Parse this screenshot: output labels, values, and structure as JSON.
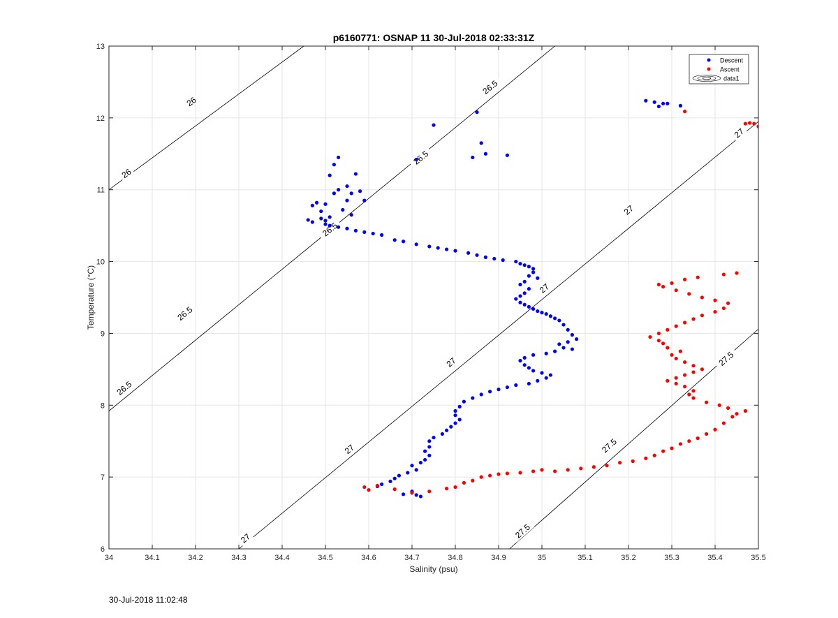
{
  "figure": {
    "footer_timestamp": "30-Jul-2018 11:02:48"
  },
  "chart_data": {
    "type": "scatter",
    "title": "p6160771: OSNAP 11 30-Jul-2018 02:33:31Z",
    "xlabel": "Salinity (psu)",
    "ylabel": "Temperature (°C)",
    "xlim": [
      34,
      35.5
    ],
    "ylim": [
      6,
      13
    ],
    "x_ticks": [
      34,
      34.1,
      34.2,
      34.3,
      34.4,
      34.5,
      34.6,
      34.7,
      34.8,
      34.9,
      35,
      35.1,
      35.2,
      35.3,
      35.4,
      35.5
    ],
    "x_tick_labels": [
      "34",
      "34.1",
      "34.2",
      "34.3",
      "34.4",
      "34.5",
      "34.6",
      "34.7",
      "34.8",
      "34.9",
      "35",
      "35.1",
      "35.2",
      "35.3",
      "35.4",
      "35.5"
    ],
    "y_ticks": [
      6,
      7,
      8,
      9,
      10,
      11,
      12,
      13
    ],
    "y_tick_labels": [
      "6",
      "7",
      "8",
      "9",
      "10",
      "11",
      "12",
      "13"
    ],
    "grid": true,
    "legend_position": "top-right",
    "legend": [
      "Descent",
      "Ascent",
      "data1"
    ],
    "colors": {
      "descent": "#0000ff",
      "ascent": "#ff0000",
      "contour": "#000000",
      "grid": "#e6e6e6",
      "axis": "#262626"
    },
    "density_contours": [
      {
        "line": [
          [
            34,
            11.0
          ],
          [
            34.45,
            13.0
          ]
        ],
        "labels": [
          {
            "text": "26",
            "x": 34.04,
            "y": 11.23
          },
          {
            "text": "26",
            "x": 34.19,
            "y": 12.23
          }
        ]
      },
      {
        "line": [
          [
            34,
            7.92
          ],
          [
            35.03,
            13.0
          ]
        ],
        "labels": [
          {
            "text": "26.5",
            "x": 34.035,
            "y": 8.24
          },
          {
            "text": "26.5",
            "x": 34.175,
            "y": 9.28
          },
          {
            "text": "26.5",
            "x": 34.51,
            "y": 10.45
          },
          {
            "text": "26.5",
            "x": 34.72,
            "y": 11.45
          },
          {
            "text": "26.5",
            "x": 34.88,
            "y": 12.43
          }
        ]
      },
      {
        "line": [
          [
            34.3,
            6.0
          ],
          [
            35.5,
            11.95
          ]
        ],
        "labels": [
          {
            "text": "27",
            "x": 34.315,
            "y": 6.15
          },
          {
            "text": "27",
            "x": 34.555,
            "y": 7.39
          },
          {
            "text": "27",
            "x": 34.79,
            "y": 8.6
          },
          {
            "text": "27",
            "x": 35.005,
            "y": 9.63
          },
          {
            "text": "27",
            "x": 35.2,
            "y": 10.72
          },
          {
            "text": "27",
            "x": 35.455,
            "y": 11.79
          }
        ]
      },
      {
        "line": [
          [
            34.925,
            6.0
          ],
          [
            35.5,
            9.06
          ]
        ],
        "labels": [
          {
            "text": "27.5",
            "x": 34.955,
            "y": 6.25
          },
          {
            "text": "27.5",
            "x": 35.155,
            "y": 7.44
          },
          {
            "text": "27.5",
            "x": 35.425,
            "y": 8.65
          }
        ]
      }
    ],
    "series": [
      {
        "name": "Descent",
        "color": "#0000ff",
        "points": [
          [
            34.46,
            10.58
          ],
          [
            34.47,
            10.55
          ],
          [
            34.47,
            10.78
          ],
          [
            34.48,
            10.82
          ],
          [
            34.49,
            10.7
          ],
          [
            34.49,
            10.6
          ],
          [
            34.5,
            10.52
          ],
          [
            34.5,
            10.57
          ],
          [
            34.5,
            10.8
          ],
          [
            34.51,
            10.62
          ],
          [
            34.51,
            11.2
          ],
          [
            34.52,
            11.35
          ],
          [
            34.52,
            10.95
          ],
          [
            34.53,
            11.0
          ],
          [
            34.53,
            11.45
          ],
          [
            34.54,
            10.72
          ],
          [
            34.55,
            11.05
          ],
          [
            34.55,
            10.85
          ],
          [
            34.56,
            10.95
          ],
          [
            34.56,
            10.65
          ],
          [
            34.57,
            11.22
          ],
          [
            34.58,
            10.98
          ],
          [
            34.59,
            10.85
          ],
          [
            34.51,
            10.5
          ],
          [
            34.53,
            10.48
          ],
          [
            34.55,
            10.46
          ],
          [
            34.57,
            10.43
          ],
          [
            34.59,
            10.41
          ],
          [
            34.61,
            10.39
          ],
          [
            34.63,
            10.37
          ],
          [
            34.66,
            10.3
          ],
          [
            34.68,
            10.28
          ],
          [
            34.71,
            10.24
          ],
          [
            34.74,
            10.21
          ],
          [
            34.76,
            10.19
          ],
          [
            34.78,
            10.17
          ],
          [
            34.8,
            10.15
          ],
          [
            34.83,
            10.12
          ],
          [
            34.85,
            10.09
          ],
          [
            34.87,
            10.06
          ],
          [
            34.89,
            10.04
          ],
          [
            34.91,
            10.02
          ],
          [
            34.94,
            10.0
          ],
          [
            34.95,
            9.97
          ],
          [
            34.96,
            9.95
          ],
          [
            34.97,
            9.93
          ],
          [
            34.98,
            9.9
          ],
          [
            34.98,
            9.85
          ],
          [
            34.97,
            9.8
          ],
          [
            34.99,
            9.77
          ],
          [
            34.96,
            9.72
          ],
          [
            34.95,
            9.68
          ],
          [
            34.97,
            9.62
          ],
          [
            34.96,
            9.56
          ],
          [
            34.95,
            9.52
          ],
          [
            34.94,
            9.48
          ],
          [
            34.95,
            9.43
          ],
          [
            34.96,
            9.4
          ],
          [
            34.97,
            9.37
          ],
          [
            34.98,
            9.34
          ],
          [
            34.99,
            9.31
          ],
          [
            35.0,
            9.29
          ],
          [
            35.01,
            9.27
          ],
          [
            35.02,
            9.24
          ],
          [
            35.03,
            9.21
          ],
          [
            35.04,
            9.18
          ],
          [
            35.05,
            9.12
          ],
          [
            35.06,
            9.05
          ],
          [
            35.07,
            8.98
          ],
          [
            35.08,
            8.92
          ],
          [
            35.06,
            8.88
          ],
          [
            35.04,
            8.85
          ],
          [
            35.05,
            8.8
          ],
          [
            35.07,
            8.78
          ],
          [
            35.03,
            8.75
          ],
          [
            35.01,
            8.72
          ],
          [
            34.98,
            8.7
          ],
          [
            34.96,
            8.66
          ],
          [
            34.95,
            8.62
          ],
          [
            34.96,
            8.56
          ],
          [
            34.97,
            8.52
          ],
          [
            34.98,
            8.48
          ],
          [
            35.0,
            8.45
          ],
          [
            35.02,
            8.42
          ],
          [
            35.01,
            8.38
          ],
          [
            34.99,
            8.34
          ],
          [
            34.97,
            8.3
          ],
          [
            34.94,
            8.28
          ],
          [
            34.92,
            8.25
          ],
          [
            34.9,
            8.22
          ],
          [
            34.88,
            8.19
          ],
          [
            34.86,
            8.15
          ],
          [
            34.84,
            8.1
          ],
          [
            34.82,
            8.05
          ],
          [
            34.81,
            7.98
          ],
          [
            34.8,
            7.92
          ],
          [
            34.8,
            7.86
          ],
          [
            34.81,
            7.8
          ],
          [
            34.8,
            7.75
          ],
          [
            34.79,
            7.7
          ],
          [
            34.78,
            7.65
          ],
          [
            34.77,
            7.6
          ],
          [
            34.75,
            7.55
          ],
          [
            34.74,
            7.5
          ],
          [
            34.74,
            7.42
          ],
          [
            34.73,
            7.36
          ],
          [
            34.74,
            7.3
          ],
          [
            34.73,
            7.24
          ],
          [
            34.72,
            7.2
          ],
          [
            34.7,
            7.16
          ],
          [
            34.71,
            7.1
          ],
          [
            34.69,
            7.06
          ],
          [
            34.67,
            7.02
          ],
          [
            34.66,
            6.98
          ],
          [
            34.65,
            6.94
          ],
          [
            34.63,
            6.9
          ],
          [
            34.62,
            6.87
          ],
          [
            34.68,
            6.76
          ],
          [
            34.7,
            6.8
          ],
          [
            34.71,
            6.75
          ],
          [
            34.72,
            6.73
          ],
          [
            34.71,
            11.42
          ],
          [
            34.75,
            11.9
          ],
          [
            34.84,
            11.45
          ],
          [
            34.85,
            12.08
          ],
          [
            34.86,
            11.65
          ],
          [
            34.87,
            11.5
          ],
          [
            34.92,
            11.48
          ],
          [
            35.24,
            12.24
          ],
          [
            35.26,
            12.22
          ],
          [
            35.27,
            12.16
          ],
          [
            35.28,
            12.2
          ],
          [
            35.29,
            12.2
          ],
          [
            35.32,
            12.17
          ]
        ]
      },
      {
        "name": "Ascent",
        "color": "#ff0000",
        "points": [
          [
            34.59,
            6.86
          ],
          [
            34.6,
            6.82
          ],
          [
            34.62,
            6.88
          ],
          [
            34.66,
            6.83
          ],
          [
            34.7,
            6.78
          ],
          [
            34.74,
            6.8
          ],
          [
            34.78,
            6.84
          ],
          [
            34.8,
            6.86
          ],
          [
            34.82,
            6.92
          ],
          [
            34.84,
            6.95
          ],
          [
            34.86,
            7.0
          ],
          [
            34.88,
            7.02
          ],
          [
            34.9,
            7.04
          ],
          [
            34.92,
            7.05
          ],
          [
            34.95,
            7.06
          ],
          [
            34.98,
            7.08
          ],
          [
            35.0,
            7.1
          ],
          [
            35.03,
            7.08
          ],
          [
            35.06,
            7.1
          ],
          [
            35.09,
            7.12
          ],
          [
            35.12,
            7.14
          ],
          [
            35.15,
            7.16
          ],
          [
            35.18,
            7.2
          ],
          [
            35.21,
            7.22
          ],
          [
            35.24,
            7.26
          ],
          [
            35.26,
            7.3
          ],
          [
            35.28,
            7.36
          ],
          [
            35.3,
            7.4
          ],
          [
            35.32,
            7.46
          ],
          [
            35.34,
            7.5
          ],
          [
            35.36,
            7.54
          ],
          [
            35.38,
            7.6
          ],
          [
            35.4,
            7.66
          ],
          [
            35.42,
            7.75
          ],
          [
            35.44,
            7.84
          ],
          [
            35.45,
            7.88
          ],
          [
            35.47,
            7.92
          ],
          [
            35.43,
            7.96
          ],
          [
            35.41,
            8.0
          ],
          [
            35.38,
            8.04
          ],
          [
            35.35,
            8.1
          ],
          [
            35.34,
            8.15
          ],
          [
            35.35,
            8.2
          ],
          [
            35.33,
            8.26
          ],
          [
            35.31,
            8.3
          ],
          [
            35.29,
            8.34
          ],
          [
            35.31,
            8.38
          ],
          [
            35.33,
            8.42
          ],
          [
            35.35,
            8.46
          ],
          [
            35.37,
            8.5
          ],
          [
            35.35,
            8.55
          ],
          [
            35.33,
            8.6
          ],
          [
            35.31,
            8.65
          ],
          [
            35.3,
            8.7
          ],
          [
            35.32,
            8.75
          ],
          [
            35.29,
            8.8
          ],
          [
            35.28,
            8.86
          ],
          [
            35.27,
            8.9
          ],
          [
            35.25,
            8.95
          ],
          [
            35.27,
            9.0
          ],
          [
            35.29,
            9.05
          ],
          [
            35.31,
            9.1
          ],
          [
            35.33,
            9.15
          ],
          [
            35.35,
            9.2
          ],
          [
            35.37,
            9.25
          ],
          [
            35.4,
            9.3
          ],
          [
            35.42,
            9.35
          ],
          [
            35.43,
            9.42
          ],
          [
            35.4,
            9.46
          ],
          [
            35.37,
            9.5
          ],
          [
            35.34,
            9.55
          ],
          [
            35.31,
            9.6
          ],
          [
            35.28,
            9.65
          ],
          [
            35.27,
            9.68
          ],
          [
            35.3,
            9.7
          ],
          [
            35.33,
            9.75
          ],
          [
            35.36,
            9.78
          ],
          [
            35.42,
            9.82
          ],
          [
            35.45,
            9.84
          ],
          [
            35.33,
            12.09
          ],
          [
            35.47,
            11.92
          ],
          [
            35.48,
            11.93
          ],
          [
            35.49,
            11.92
          ],
          [
            35.5,
            11.88
          ]
        ]
      }
    ]
  }
}
